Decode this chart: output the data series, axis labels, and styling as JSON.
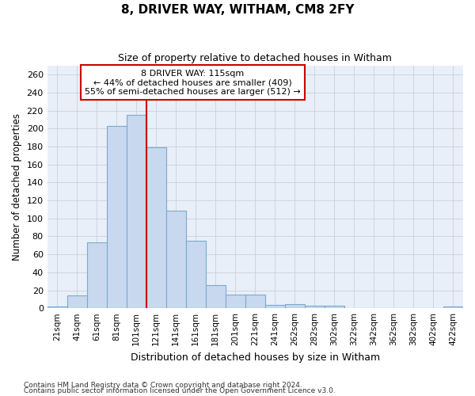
{
  "title1": "8, DRIVER WAY, WITHAM, CM8 2FY",
  "title2": "Size of property relative to detached houses in Witham",
  "xlabel": "Distribution of detached houses by size in Witham",
  "ylabel": "Number of detached properties",
  "footer1": "Contains HM Land Registry data © Crown copyright and database right 2024.",
  "footer2": "Contains public sector information licensed under the Open Government Licence v3.0.",
  "annotation_line1": "8 DRIVER WAY: 115sqm",
  "annotation_line2": "← 44% of detached houses are smaller (409)",
  "annotation_line3": "55% of semi-detached houses are larger (512) →",
  "bar_color": "#c8d8ee",
  "bar_edge_color": "#7aaad0",
  "vline_color": "#cc0000",
  "vline_x": 4.5,
  "background_color": "#ffffff",
  "grid_color": "#c8d0d8",
  "ax_bg_color": "#e8eff8",
  "categories": [
    "21sqm",
    "41sqm",
    "61sqm",
    "81sqm",
    "101sqm",
    "121sqm",
    "141sqm",
    "161sqm",
    "181sqm",
    "201sqm",
    "221sqm",
    "241sqm",
    "262sqm",
    "282sqm",
    "302sqm",
    "322sqm",
    "342sqm",
    "362sqm",
    "382sqm",
    "402sqm",
    "422sqm"
  ],
  "values": [
    2,
    14,
    73,
    203,
    215,
    179,
    109,
    75,
    26,
    15,
    15,
    4,
    5,
    3,
    3,
    0,
    0,
    0,
    0,
    0,
    2
  ],
  "ylim": [
    0,
    270
  ],
  "yticks": [
    0,
    20,
    40,
    60,
    80,
    100,
    120,
    140,
    160,
    180,
    200,
    220,
    240,
    260
  ]
}
